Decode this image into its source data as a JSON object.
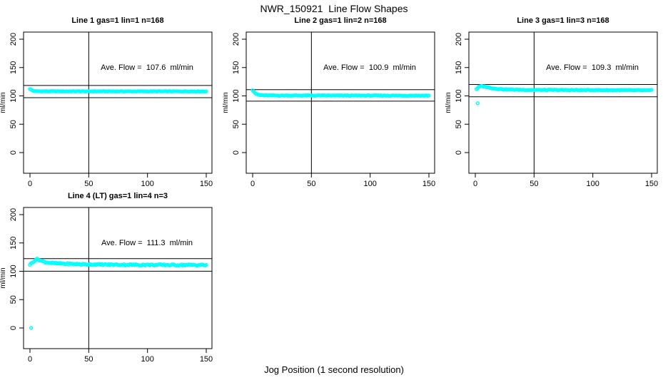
{
  "chart_data": {
    "type": "scatter",
    "title": "NWR_150921  Line Flow Shapes",
    "xlabel": "Jog Position (1 second resolution)",
    "ylabel": "ml/min",
    "point_color": "#00FFFF",
    "axis_color": "#000000",
    "x_ticks": [
      "0",
      "50",
      "100",
      "150"
    ],
    "y_ticks": [
      "0",
      "50",
      "100",
      "150",
      "200"
    ],
    "xlim": [
      0,
      150
    ],
    "ylim": [
      0,
      200
    ],
    "grid": false,
    "legend": "none",
    "panels": [
      {
        "name": "line-1",
        "title": "Line 1 gas=1 lin=1 n=168",
        "ave_flow_ml_min": 107.6,
        "ave_flow_label": "Ave. Flow =  107.6  ml/min",
        "n": 168,
        "vline_x": 50,
        "ref_line_upper": 118.4,
        "ref_line_lower": 96.8,
        "noise_amp": 0.4,
        "seed": 1,
        "series_keypoints": [
          [
            0,
            112.3
          ],
          [
            1,
            111.2
          ],
          [
            2,
            109.6
          ],
          [
            3,
            108.8
          ],
          [
            5,
            108.3
          ],
          [
            10,
            108.1
          ],
          [
            150,
            108.0
          ]
        ],
        "outliers": []
      },
      {
        "name": "line-2",
        "title": "Line 2 gas=1 lin=2 n=168",
        "ave_flow_ml_min": 100.9,
        "ave_flow_label": "Ave. Flow =  100.9  ml/min",
        "n": 168,
        "vline_x": 50,
        "ref_line_upper": 111.0,
        "ref_line_lower": 90.8,
        "noise_amp": 0.5,
        "seed": 2,
        "series_keypoints": [
          [
            0,
            110.2
          ],
          [
            1,
            107.8
          ],
          [
            2,
            105.2
          ],
          [
            3,
            103.6
          ],
          [
            4,
            102.6
          ],
          [
            6,
            101.6
          ],
          [
            9,
            101.0
          ],
          [
            15,
            100.7
          ],
          [
            150,
            100.5
          ]
        ],
        "outliers": []
      },
      {
        "name": "line-3",
        "title": "Line 3 gas=1 lin=3 n=168",
        "ave_flow_ml_min": 109.3,
        "ave_flow_label": "Ave. Flow =  109.3  ml/min",
        "n": 168,
        "vline_x": 50,
        "ref_line_upper": 120.2,
        "ref_line_lower": 98.4,
        "noise_amp": 0.6,
        "seed": 3,
        "series_keypoints": [
          [
            1,
            112.0
          ],
          [
            2,
            113.5
          ],
          [
            3,
            115.8
          ],
          [
            4,
            116.8
          ],
          [
            6,
            117.2
          ],
          [
            8,
            116.5
          ],
          [
            11,
            115.0
          ],
          [
            15,
            113.3
          ],
          [
            20,
            112.2
          ],
          [
            28,
            111.2
          ],
          [
            45,
            110.6
          ],
          [
            150,
            110.0
          ]
        ],
        "outliers": [
          [
            2,
            87
          ]
        ]
      },
      {
        "name": "line-4",
        "title": "Line 4 (LT) gas=1 lin=4 n=3",
        "ave_flow_ml_min": 111.3,
        "ave_flow_label": "Ave. Flow =  111.3  ml/min",
        "n": 3,
        "vline_x": 50,
        "ref_line_upper": 122.4,
        "ref_line_lower": 100.2,
        "noise_amp": 1.2,
        "seed": 4,
        "series_keypoints": [
          [
            0,
            112.0
          ],
          [
            1,
            113.5
          ],
          [
            2,
            115.0
          ],
          [
            3,
            117.0
          ],
          [
            4,
            119.0
          ],
          [
            5,
            120.8
          ],
          [
            6,
            121.2
          ],
          [
            8,
            120.2
          ],
          [
            10,
            118.0
          ],
          [
            13,
            116.3
          ],
          [
            17,
            115.0
          ],
          [
            22,
            114.0
          ],
          [
            30,
            113.2
          ],
          [
            45,
            112.4
          ],
          [
            70,
            111.6
          ],
          [
            110,
            111.2
          ],
          [
            150,
            111.0
          ]
        ],
        "outliers": [
          [
            1,
            0
          ]
        ]
      }
    ]
  }
}
